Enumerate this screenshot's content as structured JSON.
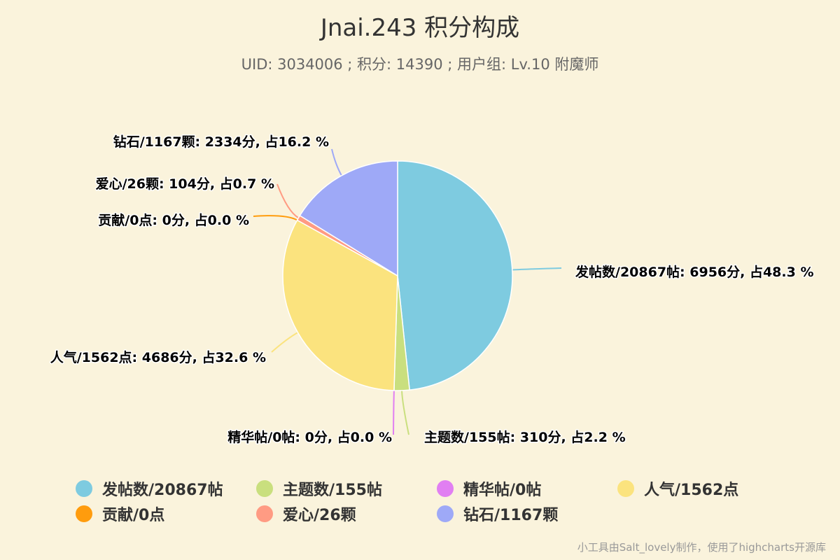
{
  "title": "Jnai.243 积分构成",
  "subtitle": "UID: 3034006 ; 积分: 14390 ; 用户组: Lv.10 附魔师",
  "credits": "小工具由Salt_lovely制作，使用了highcharts开源库",
  "chart_data": {
    "type": "pie",
    "slices": [
      {
        "name": "发帖数/20867帖",
        "value": 6956,
        "percent": 48.3,
        "color": "#7ecbe0",
        "label": "发帖数/20867帖: 6956分, 占48.3 %"
      },
      {
        "name": "主题数/155帖",
        "value": 310,
        "percent": 2.2,
        "color": "#c9df7e",
        "label": "主题数/155帖: 310分, 占2.2 %"
      },
      {
        "name": "精华帖/0帖",
        "value": 0,
        "percent": 0.0,
        "color": "#e17ff2",
        "label": "精华帖/0帖: 0分, 占0.0 %"
      },
      {
        "name": "人气/1562点",
        "value": 4686,
        "percent": 32.6,
        "color": "#fbe37e",
        "label": "人气/1562点: 4686分, 占32.6 %"
      },
      {
        "name": "贡献/0点",
        "value": 0,
        "percent": 0.0,
        "color": "#ff9c0d",
        "label": "贡献/0点: 0分, 占0.0 %"
      },
      {
        "name": "爱心/26颗",
        "value": 104,
        "percent": 0.7,
        "color": "#ff9b83",
        "label": "爱心/26颗: 104分, 占0.7 %"
      },
      {
        "name": "钻石/1167颗",
        "value": 2334,
        "percent": 16.2,
        "color": "#9ea9f7",
        "label": "钻石/1167颗: 2334分, 占16.2 %"
      }
    ],
    "legend_placement": "bottom"
  }
}
